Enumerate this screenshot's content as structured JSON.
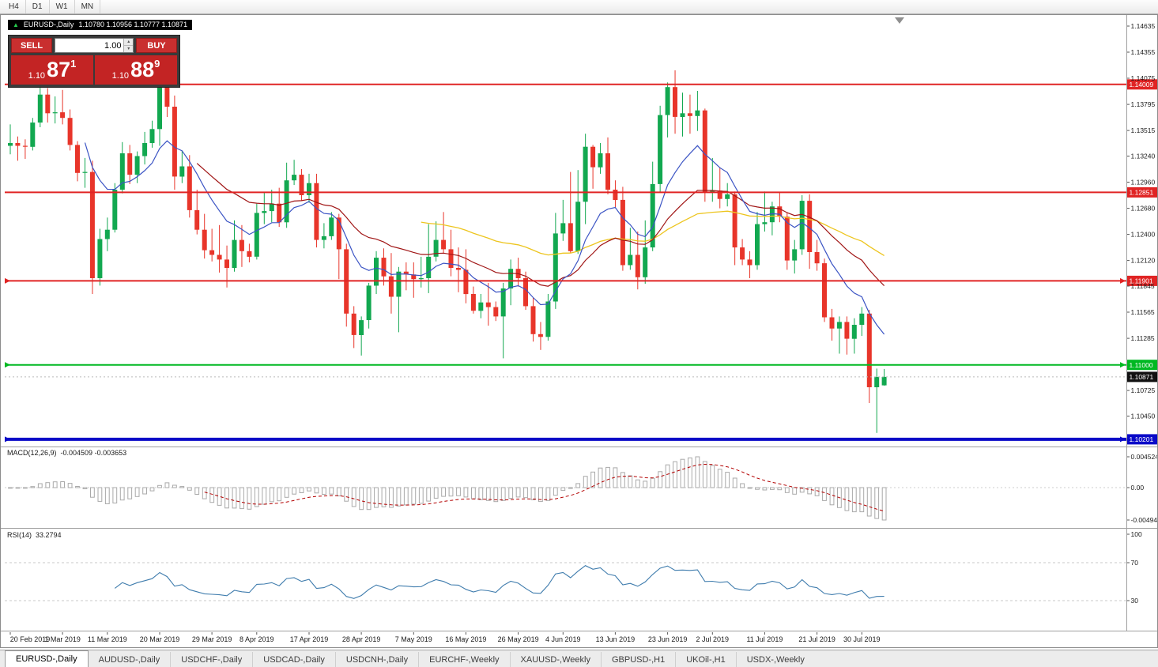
{
  "window": {
    "toolbar": {
      "timeframes": [
        "H4",
        "D1",
        "W1",
        "MN"
      ]
    }
  },
  "chart": {
    "title": {
      "symbol": "EURUSD-,Daily",
      "ohlc": "1.10780 1.10956 1.10777 1.10871"
    },
    "trade_panel": {
      "sell": "SELL",
      "buy": "BUY",
      "volume": "1.00",
      "bid_prefix": "1.10",
      "bid_big": "87",
      "bid_sup": "1",
      "ask_prefix": "1.10",
      "ask_big": "88",
      "ask_sup": "9"
    },
    "price_axis": {
      "labels": [
        "1.14635",
        "1.14355",
        "1.14075",
        "1.13795",
        "1.13515",
        "1.13240",
        "1.12960",
        "1.12680",
        "1.12400",
        "1.12120",
        "1.11845",
        "1.11565",
        "1.11285",
        "1.10725",
        "1.10450"
      ]
    },
    "hlines": [
      {
        "price": 1.14009,
        "label": "1.14009",
        "color_key": "line_red",
        "width": 2,
        "arrows": false
      },
      {
        "price": 1.12851,
        "label": "1.12851",
        "color_key": "line_red",
        "width": 2,
        "arrows": false
      },
      {
        "price": 1.11901,
        "label": "1.11901",
        "color_key": "line_red",
        "width": 2,
        "arrows": true
      },
      {
        "price": 1.11,
        "label": "1.11000",
        "color_key": "line_green",
        "width": 2,
        "arrows": true
      },
      {
        "price": 1.10201,
        "label": "1.10201",
        "color_key": "line_blue",
        "width": 4,
        "arrows": true
      }
    ],
    "current_price": {
      "price": 1.10871,
      "label": "1.10871"
    },
    "date_axis": {
      "labels": [
        "20 Feb 2019",
        "1 Mar 2019",
        "11 Mar 2019",
        "20 Mar 2019",
        "29 Mar 2019",
        "8 Apr 2019",
        "17 Apr 2019",
        "28 Apr 2019",
        "7 May 2019",
        "16 May 2019",
        "26 May 2019",
        "4 Jun 2019",
        "13 Jun 2019",
        "23 Jun 2019",
        "2 Jul 2019",
        "11 Jul 2019",
        "21 Jul 2019",
        "30 Jul 2019"
      ],
      "bar_indices": [
        0,
        7,
        13,
        20,
        27,
        33,
        40,
        47,
        54,
        61,
        68,
        74,
        81,
        88,
        94,
        101,
        108,
        114
      ]
    },
    "ma_periods": {
      "fast": 10,
      "mid": 25,
      "slow": 55
    },
    "candles": [
      [
        1.1335,
        1.1358,
        1.1326,
        1.1338
      ],
      [
        1.1338,
        1.1345,
        1.1319,
        1.1335
      ],
      [
        1.1335,
        1.1342,
        1.1321,
        1.1334
      ],
      [
        1.1334,
        1.1365,
        1.133,
        1.136
      ],
      [
        1.136,
        1.1403,
        1.1355,
        1.139
      ],
      [
        1.139,
        1.1397,
        1.136,
        1.137
      ],
      [
        1.137,
        1.1388,
        1.1359,
        1.1371
      ],
      [
        1.1371,
        1.1395,
        1.1358,
        1.1365
      ],
      [
        1.1365,
        1.1374,
        1.133,
        1.1336
      ],
      [
        1.1336,
        1.134,
        1.1297,
        1.1306
      ],
      [
        1.1306,
        1.1322,
        1.129,
        1.1307
      ],
      [
        1.1307,
        1.1319,
        1.1176,
        1.1193
      ],
      [
        1.1193,
        1.1246,
        1.1185,
        1.1235
      ],
      [
        1.1235,
        1.1258,
        1.1222,
        1.1245
      ],
      [
        1.1245,
        1.1295,
        1.1242,
        1.1288
      ],
      [
        1.1288,
        1.1339,
        1.1284,
        1.1327
      ],
      [
        1.1327,
        1.1336,
        1.1294,
        1.1304
      ],
      [
        1.1304,
        1.1329,
        1.1295,
        1.1324
      ],
      [
        1.1324,
        1.135,
        1.1315,
        1.1338
      ],
      [
        1.1338,
        1.1362,
        1.1333,
        1.1353
      ],
      [
        1.1353,
        1.141,
        1.1335,
        1.1403
      ],
      [
        1.1403,
        1.1412,
        1.1366,
        1.1377
      ],
      [
        1.1377,
        1.1389,
        1.1288,
        1.1302
      ],
      [
        1.1302,
        1.133,
        1.1295,
        1.1313
      ],
      [
        1.1313,
        1.1325,
        1.1258,
        1.1266
      ],
      [
        1.1266,
        1.1288,
        1.124,
        1.1245
      ],
      [
        1.1245,
        1.1262,
        1.1214,
        1.1223
      ],
      [
        1.1223,
        1.1246,
        1.1211,
        1.1218
      ],
      [
        1.1218,
        1.125,
        1.1199,
        1.1213
      ],
      [
        1.1213,
        1.1228,
        1.1183,
        1.1204
      ],
      [
        1.1204,
        1.1255,
        1.12,
        1.1234
      ],
      [
        1.1234,
        1.125,
        1.1205,
        1.1222
      ],
      [
        1.1222,
        1.123,
        1.121,
        1.1216
      ],
      [
        1.1216,
        1.1273,
        1.1213,
        1.1263
      ],
      [
        1.1263,
        1.1285,
        1.1251,
        1.1265
      ],
      [
        1.1265,
        1.1288,
        1.1253,
        1.1273
      ],
      [
        1.1273,
        1.129,
        1.1248,
        1.1253
      ],
      [
        1.1253,
        1.1317,
        1.1247,
        1.1298
      ],
      [
        1.1298,
        1.132,
        1.1293,
        1.1304
      ],
      [
        1.1304,
        1.131,
        1.1276,
        1.1282
      ],
      [
        1.1282,
        1.1305,
        1.1274,
        1.1295
      ],
      [
        1.1295,
        1.1305,
        1.1226,
        1.1234
      ],
      [
        1.1234,
        1.1252,
        1.1225,
        1.1238
      ],
      [
        1.1238,
        1.1264,
        1.1234,
        1.1258
      ],
      [
        1.1258,
        1.1262,
        1.1192,
        1.1224
      ],
      [
        1.1224,
        1.123,
        1.1141,
        1.1155
      ],
      [
        1.1155,
        1.1163,
        1.1118,
        1.1132
      ],
      [
        1.1132,
        1.1152,
        1.111,
        1.1148
      ],
      [
        1.1148,
        1.1188,
        1.1139,
        1.1185
      ],
      [
        1.1185,
        1.1222,
        1.1176,
        1.1215
      ],
      [
        1.1215,
        1.1225,
        1.1185,
        1.1195
      ],
      [
        1.1195,
        1.122,
        1.1155,
        1.1173
      ],
      [
        1.1173,
        1.1205,
        1.1135,
        1.12
      ],
      [
        1.12,
        1.121,
        1.118,
        1.1197
      ],
      [
        1.1197,
        1.121,
        1.1172,
        1.1192
      ],
      [
        1.1192,
        1.1216,
        1.1183,
        1.1193
      ],
      [
        1.1193,
        1.1251,
        1.1177,
        1.1216
      ],
      [
        1.1216,
        1.1254,
        1.1211,
        1.1234
      ],
      [
        1.1234,
        1.1264,
        1.1219,
        1.1224
      ],
      [
        1.1224,
        1.1245,
        1.1195,
        1.1204
      ],
      [
        1.1204,
        1.1226,
        1.1178,
        1.1202
      ],
      [
        1.1202,
        1.1224,
        1.1166,
        1.1176
      ],
      [
        1.1176,
        1.1184,
        1.1155,
        1.1158
      ],
      [
        1.1158,
        1.1176,
        1.115,
        1.1167
      ],
      [
        1.1167,
        1.1188,
        1.1142,
        1.1162
      ],
      [
        1.1162,
        1.1168,
        1.1147,
        1.1152
      ],
      [
        1.1152,
        1.1188,
        1.1107,
        1.1182
      ],
      [
        1.1182,
        1.1213,
        1.1164,
        1.1203
      ],
      [
        1.1203,
        1.1215,
        1.1184,
        1.1193
      ],
      [
        1.1193,
        1.12,
        1.1159,
        1.1163
      ],
      [
        1.1163,
        1.1172,
        1.1125,
        1.1133
      ],
      [
        1.1133,
        1.1146,
        1.1116,
        1.113
      ],
      [
        1.113,
        1.1176,
        1.1126,
        1.1168
      ],
      [
        1.1168,
        1.1263,
        1.116,
        1.1241
      ],
      [
        1.1241,
        1.1277,
        1.1233,
        1.1252
      ],
      [
        1.1252,
        1.1307,
        1.122,
        1.1222
      ],
      [
        1.1222,
        1.1309,
        1.1219,
        1.1275
      ],
      [
        1.1275,
        1.1348,
        1.1251,
        1.1334
      ],
      [
        1.1334,
        1.1336,
        1.1289,
        1.1312
      ],
      [
        1.1312,
        1.1338,
        1.1305,
        1.1327
      ],
      [
        1.1327,
        1.1344,
        1.1283,
        1.1288
      ],
      [
        1.1288,
        1.1298,
        1.1268,
        1.1277
      ],
      [
        1.1277,
        1.1291,
        1.1201,
        1.1207
      ],
      [
        1.1207,
        1.1247,
        1.1202,
        1.1218
      ],
      [
        1.1218,
        1.1243,
        1.1181,
        1.1194
      ],
      [
        1.1194,
        1.1255,
        1.1187,
        1.1226
      ],
      [
        1.1226,
        1.1318,
        1.1222,
        1.1294
      ],
      [
        1.1294,
        1.1378,
        1.1285,
        1.1368
      ],
      [
        1.1368,
        1.1403,
        1.1344,
        1.1398
      ],
      [
        1.1398,
        1.1416,
        1.1348,
        1.1366
      ],
      [
        1.1366,
        1.1392,
        1.1345,
        1.137
      ],
      [
        1.137,
        1.139,
        1.1348,
        1.1367
      ],
      [
        1.1367,
        1.1394,
        1.1351,
        1.1373
      ],
      [
        1.1373,
        1.1375,
        1.1275,
        1.1285
      ],
      [
        1.1285,
        1.1322,
        1.1275,
        1.1287
      ],
      [
        1.1287,
        1.1312,
        1.1268,
        1.1278
      ],
      [
        1.1278,
        1.1295,
        1.127,
        1.1283
      ],
      [
        1.1283,
        1.1286,
        1.1207,
        1.1226
      ],
      [
        1.1226,
        1.1235,
        1.1207,
        1.1213
      ],
      [
        1.1213,
        1.1222,
        1.1193,
        1.1207
      ],
      [
        1.1207,
        1.1264,
        1.1202,
        1.1251
      ],
      [
        1.1251,
        1.1286,
        1.1243,
        1.1253
      ],
      [
        1.1253,
        1.1275,
        1.1239,
        1.127
      ],
      [
        1.127,
        1.1285,
        1.1253,
        1.1259
      ],
      [
        1.1259,
        1.1263,
        1.1202,
        1.1212
      ],
      [
        1.1212,
        1.1234,
        1.1198,
        1.1224
      ],
      [
        1.1224,
        1.1282,
        1.1218,
        1.1276
      ],
      [
        1.1276,
        1.1283,
        1.1203,
        1.1221
      ],
      [
        1.1221,
        1.1234,
        1.1201,
        1.1209
      ],
      [
        1.1209,
        1.1214,
        1.1146,
        1.1151
      ],
      [
        1.1151,
        1.116,
        1.1126,
        1.1139
      ],
      [
        1.1139,
        1.1152,
        1.1112,
        1.1146
      ],
      [
        1.1146,
        1.1152,
        1.1111,
        1.1128
      ],
      [
        1.1128,
        1.115,
        1.1112,
        1.1143
      ],
      [
        1.1143,
        1.1162,
        1.1131,
        1.1155
      ],
      [
        1.1155,
        1.1159,
        1.1059,
        1.1076
      ],
      [
        1.1076,
        1.1096,
        1.1027,
        1.1087
      ],
      [
        1.1078,
        1.10956,
        1.10777,
        1.10871
      ]
    ]
  },
  "macd": {
    "title": "MACD(12,26,9)",
    "values": "-0.004509 -0.003653",
    "axis_labels": [
      "0.004524",
      "0.00",
      "-0.00494"
    ],
    "fast": 12,
    "slow": 26,
    "signal": 9
  },
  "rsi": {
    "title": "RSI(14)",
    "value": "33.2794",
    "axis_labels": [
      "100",
      "70",
      "30"
    ],
    "levels": [
      70,
      30
    ],
    "period": 14
  },
  "tabs": {
    "items": [
      {
        "label": "EURUSD-,Daily",
        "active": true
      },
      {
        "label": "AUDUSD-,Daily",
        "active": false
      },
      {
        "label": "USDCHF-,Daily",
        "active": false
      },
      {
        "label": "USDCAD-,Daily",
        "active": false
      },
      {
        "label": "USDCNH-,Daily",
        "active": false
      },
      {
        "label": "EURCHF-,Weekly",
        "active": false
      },
      {
        "label": "XAUUSD-,Weekly",
        "active": false
      },
      {
        "label": "GBPUSD-,H1",
        "active": false
      },
      {
        "label": "UKOil-,H1",
        "active": false
      },
      {
        "label": "USDX-,Weekly",
        "active": false
      }
    ]
  },
  "colors": {
    "up": "#12a850",
    "down": "#e8352a",
    "ma_fast": "#3b54c4",
    "ma_mid": "#a01515",
    "ma_slow": "#edc51e",
    "macd_signal": "#b30000",
    "macd_hist": "#a9a9a9",
    "rsi_line": "#3f7cad",
    "line_red": "#e02424",
    "line_green": "#00b822",
    "line_blue": "#0a0ac8",
    "tag_black": "#111111"
  }
}
